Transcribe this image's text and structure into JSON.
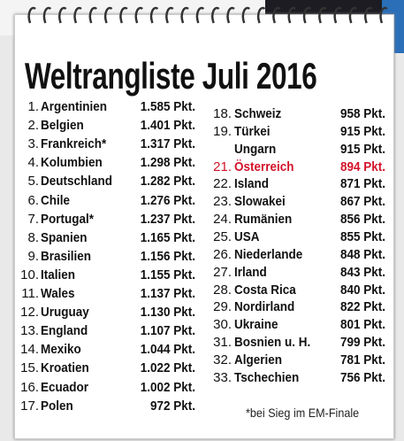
{
  "header": {
    "title": "Weltrangliste Juli 2016"
  },
  "left": [
    {
      "rank": "1.",
      "name": "Argentinien",
      "points": "1.585 Pkt."
    },
    {
      "rank": "2.",
      "name": "Belgien",
      "points": "1.401 Pkt."
    },
    {
      "rank": "3.",
      "name": "Frankreich*",
      "points": "1.317 Pkt."
    },
    {
      "rank": "4.",
      "name": "Kolumbien",
      "points": "1.298 Pkt."
    },
    {
      "rank": "5.",
      "name": "Deutschland",
      "points": "1.282 Pkt."
    },
    {
      "rank": "6.",
      "name": "Chile",
      "points": "1.276 Pkt."
    },
    {
      "rank": "7.",
      "name": "Portugal*",
      "points": "1.237 Pkt."
    },
    {
      "rank": "8.",
      "name": "Spanien",
      "points": "1.165 Pkt."
    },
    {
      "rank": "9.",
      "name": "Brasilien",
      "points": "1.156 Pkt."
    },
    {
      "rank": "10.",
      "name": "Italien",
      "points": "1.155 Pkt."
    },
    {
      "rank": "11.",
      "name": "Wales",
      "points": "1.137 Pkt."
    },
    {
      "rank": "12.",
      "name": "Uruguay",
      "points": "1.130 Pkt."
    },
    {
      "rank": "13.",
      "name": "England",
      "points": "1.107 Pkt."
    },
    {
      "rank": "14.",
      "name": "Mexiko",
      "points": "1.044 Pkt."
    },
    {
      "rank": "15.",
      "name": "Kroatien",
      "points": "1.022 Pkt."
    },
    {
      "rank": "16.",
      "name": "Ecuador",
      "points": "1.002 Pkt."
    },
    {
      "rank": "17.",
      "name": "Polen",
      "points": "972 Pkt."
    }
  ],
  "right": [
    {
      "rank": "18.",
      "name": "Schweiz",
      "points": "958 Pkt."
    },
    {
      "rank": "19.",
      "name": "Türkei",
      "points": "915 Pkt."
    },
    {
      "name": "Ungarn",
      "points": "915 Pkt."
    },
    {
      "rank": "21.",
      "name": "Österreich",
      "points": "894 Pkt.",
      "color": "#d3132a"
    },
    {
      "rank": "22.",
      "name": "Island",
      "points": "871 Pkt."
    },
    {
      "rank": "23.",
      "name": "Slowakei",
      "points": "867 Pkt."
    },
    {
      "rank": "24.",
      "name": "Rumänien",
      "points": "856 Pkt."
    },
    {
      "rank": "25.",
      "name": "USA",
      "points": "855 Pkt."
    },
    {
      "rank": "26.",
      "name": "Niederlande",
      "points": "848 Pkt."
    },
    {
      "rank": "27.",
      "name": "Irland",
      "points": "843 Pkt."
    },
    {
      "rank": "28.",
      "name": "Costa Rica",
      "points": "840 Pkt."
    },
    {
      "rank": "29.",
      "name": "Nordirland",
      "points": "822 Pkt."
    },
    {
      "rank": "30.",
      "name": "Ukraine",
      "points": "801 Pkt."
    },
    {
      "rank": "31.",
      "name": "Bosnien u. H.",
      "points": "799 Pkt."
    },
    {
      "rank": "32.",
      "name": "Algerien",
      "points": "781 Pkt."
    },
    {
      "rank": "33.",
      "name": "Tschechien",
      "points": "756 Pkt."
    }
  ],
  "footnote": "*bei Sieg im EM-Finale"
}
